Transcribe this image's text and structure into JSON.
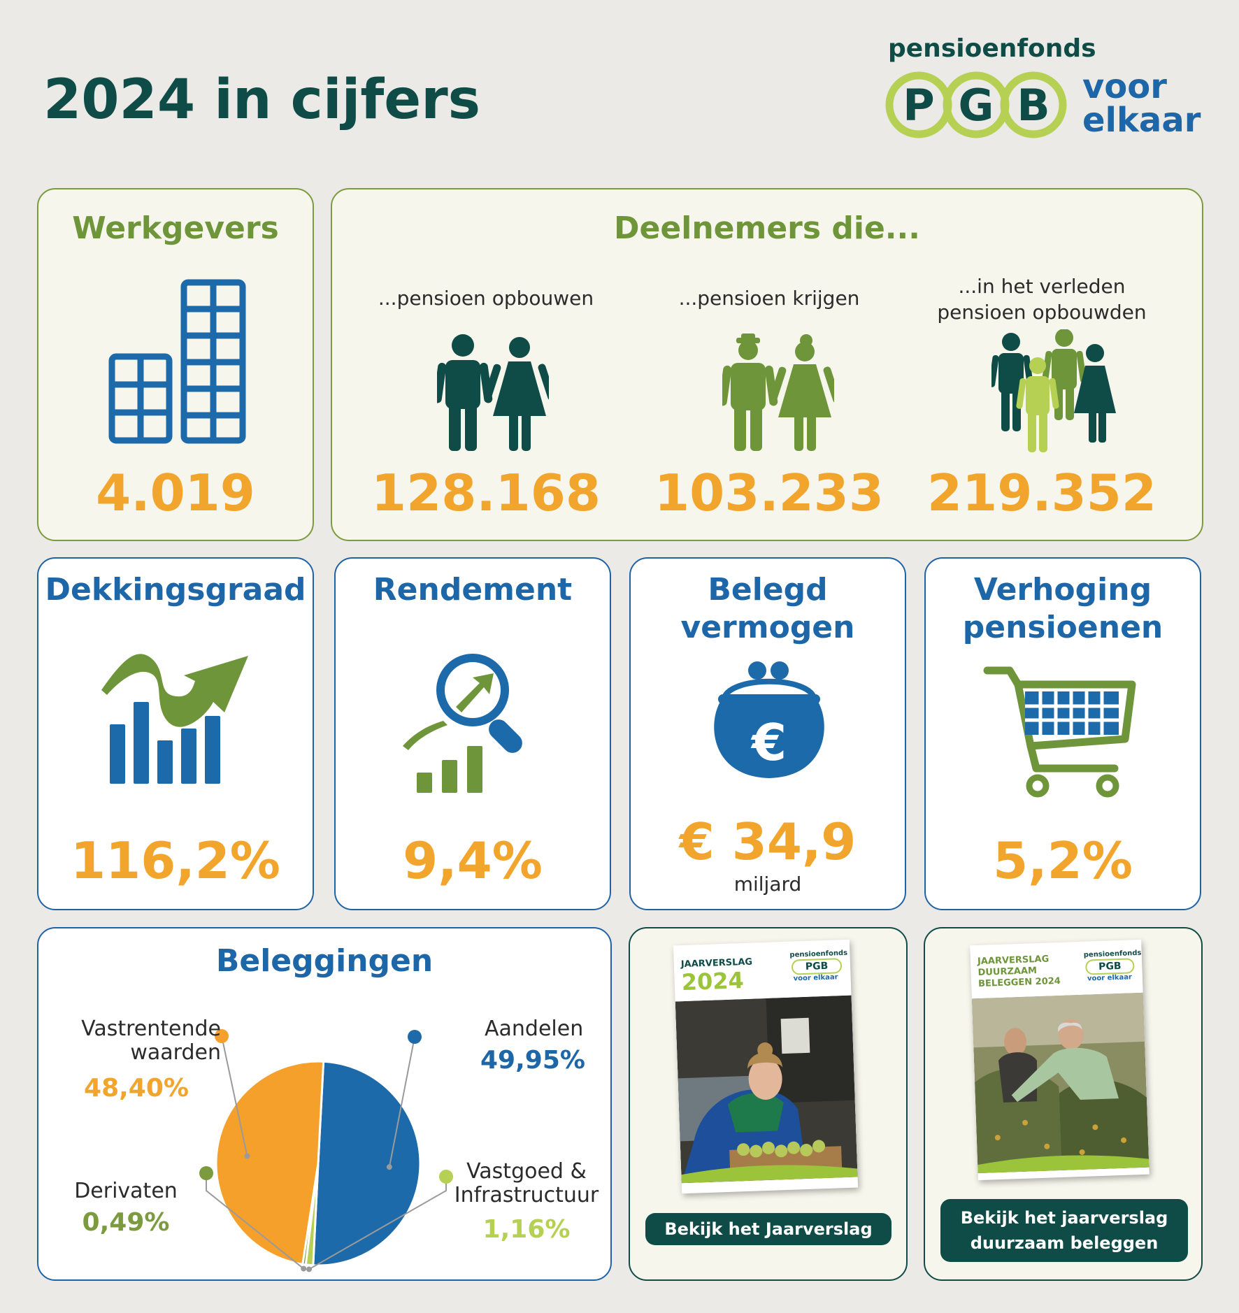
{
  "header": {
    "title": "2024 in cijfers",
    "logo_top": "pensioenfonds",
    "logo_letters": [
      "P",
      "G",
      "B"
    ],
    "logo_tag_1": "voor",
    "logo_tag_2": "elkaar"
  },
  "werkgevers": {
    "title": "Werkgevers",
    "value": "4.019"
  },
  "deelnemers": {
    "title": "Deelnemers die...",
    "groups": [
      {
        "label": "...pensioen opbouwen",
        "value": "128.168"
      },
      {
        "label": "...pensioen krijgen",
        "value": "103.233"
      },
      {
        "label_1": "...in het verleden",
        "label_2": "pensioen opbouwden",
        "value": "219.352"
      }
    ]
  },
  "kpis": {
    "dekkingsgraad": {
      "title": "Dekkingsgraad",
      "value": "116,2%"
    },
    "rendement": {
      "title": "Rendement",
      "value": "9,4%"
    },
    "belegd": {
      "title_1": "Belegd",
      "title_2": "vermogen",
      "value": "€ 34,9",
      "unit": "miljard"
    },
    "verhoging": {
      "title_1": "Verhoging",
      "title_2": "pensioenen",
      "value": "5,2%"
    }
  },
  "chart_data": {
    "type": "pie",
    "title": "Beleggingen",
    "categories": [
      "Aandelen",
      "Vastgoed & Infrastructuur",
      "Derivaten",
      "Vastrentende waarden"
    ],
    "values": [
      49.95,
      1.16,
      0.49,
      48.4
    ],
    "value_labels": [
      "49,95%",
      "1,16%",
      "0,49%",
      "48,40%"
    ],
    "label_lines": {
      "vastrentende_1": "Vastrentende",
      "vastrentende_2": "waarden",
      "vastgoed_1": "Vastgoed &",
      "vastgoed_2": "Infrastructuur"
    },
    "colors": [
      "#1d6aaa",
      "#b6d054",
      "#7c9b3e",
      "#f4a02a"
    ]
  },
  "reports": [
    {
      "cover_line_1": "JAARVERSLAG",
      "cover_line_2": "2024",
      "cover_logo_top": "pensioenfonds",
      "cover_logo_letters": "PGB",
      "cover_logo_tag": "voor elkaar",
      "button": "Bekijk het Jaarverslag"
    },
    {
      "cover_line_1": "JAARVERSLAG",
      "cover_line_2": "DUURZAAM",
      "cover_line_3": "BELEGGEN 2024",
      "cover_logo_top": "pensioenfonds",
      "cover_logo_letters": "PGB",
      "cover_logo_tag": "voor elkaar",
      "button_1": "Bekijk het jaarverslag",
      "button_2": "duurzaam beleggen"
    }
  ],
  "colors": {
    "dark_green": "#0f4c47",
    "green": "#6f953a",
    "light_green": "#b6d054",
    "blue": "#1d66a8",
    "orange": "#f2a52c",
    "background": "#ebeae6"
  }
}
